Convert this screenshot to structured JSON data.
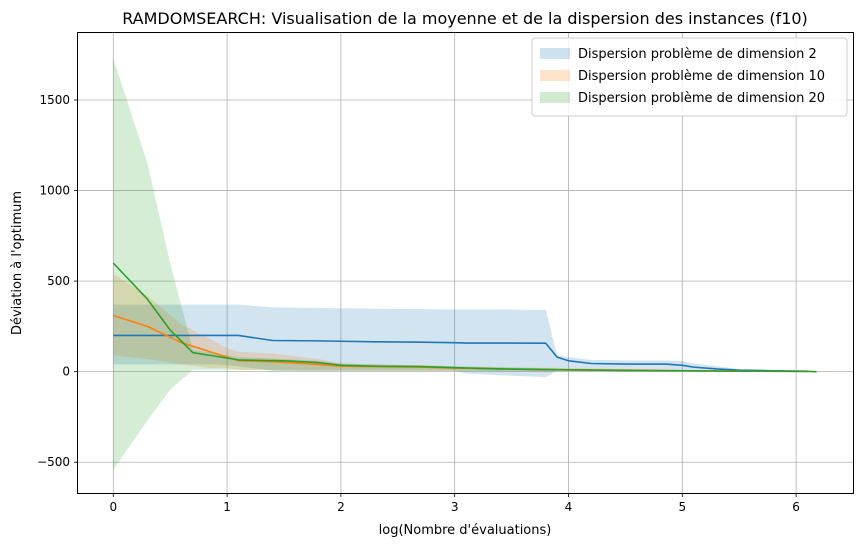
{
  "chart_data": {
    "type": "area",
    "title": "RAMDOMSEARCH: Visualisation de la moyenne et de la dispersion des instances (f10)",
    "xlabel": "log(Nombre d'évaluations)",
    "ylabel": "Déviation à l'optimum",
    "xlim": [
      -0.31,
      6.5
    ],
    "ylim": [
      -670,
      1870
    ],
    "xticks": [
      0,
      1,
      2,
      3,
      4,
      5,
      6
    ],
    "yticks": [
      -500,
      0,
      500,
      1000,
      1500
    ],
    "ytick_labels": [
      "−500",
      "0",
      "500",
      "1000",
      "1500"
    ],
    "grid": true,
    "legend_position": "upper right",
    "legend": [
      "Dispersion problème de dimension 2",
      "Dispersion problème de dimension 10",
      "Dispersion problème de dimension 20"
    ],
    "series": [
      {
        "color": "#1f77b4",
        "fill_alpha": 0.2,
        "x": [
          0,
          0.3,
          0.6,
          0.9,
          1.1,
          1.4,
          1.8,
          2.0,
          2.3,
          2.7,
          3.0,
          3.1,
          3.4,
          3.8,
          3.9,
          4.0,
          4.2,
          4.5,
          4.85,
          5.0,
          5.1,
          5.3,
          5.5,
          5.8,
          6.1
        ],
        "mean": [
          200,
          200,
          200,
          200,
          200,
          172,
          170,
          168,
          165,
          163,
          160,
          158,
          158,
          157,
          80,
          60,
          45,
          42,
          42,
          35,
          25,
          15,
          8,
          5,
          3
        ],
        "lower": [
          40,
          40,
          40,
          40,
          30,
          5,
          5,
          5,
          5,
          5,
          5,
          -10,
          -20,
          -30,
          5,
          5,
          5,
          5,
          5,
          5,
          0,
          0,
          0,
          0,
          0
        ],
        "upper": [
          370,
          370,
          370,
          370,
          370,
          355,
          352,
          350,
          348,
          345,
          343,
          343,
          343,
          342,
          90,
          80,
          65,
          62,
          62,
          58,
          45,
          30,
          15,
          10,
          5
        ]
      },
      {
        "color": "#ff7f0e",
        "fill_alpha": 0.2,
        "x": [
          0,
          0.3,
          0.6,
          0.85,
          1.0,
          1.1,
          1.4,
          1.8,
          2.0,
          2.3,
          2.7,
          3.0,
          3.4,
          4.0,
          4.5,
          5.0,
          5.5,
          6.1
        ],
        "mean": [
          310,
          250,
          160,
          110,
          80,
          60,
          55,
          40,
          30,
          28,
          25,
          20,
          15,
          10,
          8,
          5,
          3,
          2
        ],
        "lower": [
          90,
          70,
          40,
          20,
          20,
          10,
          10,
          5,
          5,
          5,
          5,
          5,
          5,
          3,
          2,
          1,
          0,
          0
        ],
        "upper": [
          540,
          420,
          260,
          180,
          130,
          110,
          100,
          70,
          45,
          40,
          35,
          30,
          25,
          20,
          15,
          10,
          6,
          4
        ]
      },
      {
        "color": "#2ca02c",
        "fill_alpha": 0.2,
        "x": [
          0,
          0.3,
          0.5,
          0.7,
          0.9,
          1.1,
          1.3,
          1.5,
          1.8,
          2.0,
          2.3,
          2.7,
          3.0,
          3.4,
          4.0,
          4.5,
          5.0,
          5.5,
          6.1,
          6.18
        ],
        "mean": [
          600,
          400,
          230,
          105,
          85,
          65,
          62,
          60,
          50,
          35,
          30,
          28,
          22,
          15,
          10,
          7,
          5,
          3,
          1,
          0
        ],
        "lower": [
          -540,
          -270,
          -100,
          10,
          10,
          10,
          10,
          5,
          5,
          5,
          5,
          5,
          5,
          3,
          2,
          1,
          0,
          0,
          0,
          0
        ],
        "upper": [
          1730,
          1150,
          600,
          120,
          100,
          80,
          75,
          70,
          60,
          45,
          40,
          35,
          30,
          25,
          15,
          10,
          8,
          5,
          2,
          0
        ]
      }
    ]
  }
}
